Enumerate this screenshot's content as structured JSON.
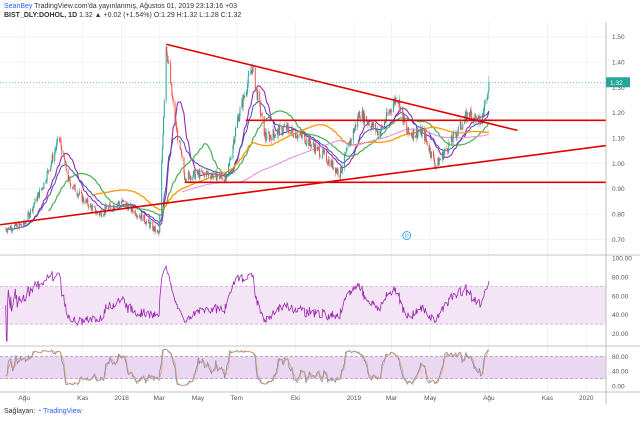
{
  "header": {
    "author": "SeanBey",
    "publish_text": "TradingView.com'da yayınlanmış, Ağustos 01, 2019 23:13:16 +03",
    "symbol": "BIST_DLY:DOHOL, 1D",
    "ohlc": "1.32 ▲ +0.02 (+1.54%) O:1.29 H:1.32 L:1.28 C:1.32"
  },
  "footer": {
    "label": "Sağlayan:",
    "brand": "TradingView"
  },
  "colors": {
    "up": "#26a69a",
    "down": "#ef5350",
    "trend": "#e00000",
    "ma_purple": "#9c27b0",
    "ma_blue": "#3f51b5",
    "ma_green": "#4caf50",
    "ma_orange": "#ff9800",
    "ma_pink": "#e08be0",
    "rsi": "#9c27b0",
    "stoch_k": "#7986cb",
    "stoch_d": "#e0a060"
  },
  "chart_data": [
    {
      "type": "candlestick",
      "panel": "price",
      "x_ticks": [
        "Ağu",
        "Kas",
        "2018",
        "Mar",
        "May",
        "Tem",
        "Eki",
        "2019",
        "Mar",
        "May",
        "Ağu",
        "Kas",
        "2020"
      ],
      "y_ticks": [
        "1.50",
        "1.40",
        "1.30",
        "1.20",
        "1.10",
        "1.00",
        "0.90",
        "0.80",
        "0.70"
      ],
      "ylim": [
        0.65,
        1.55
      ],
      "last_price": "1.32",
      "anchors": [
        {
          "date": "2017-07-01",
          "close": 0.74
        },
        {
          "date": "2017-08-01",
          "close": 0.76
        },
        {
          "date": "2017-09-01",
          "close": 0.92
        },
        {
          "date": "2017-09-25",
          "close": 1.1
        },
        {
          "date": "2017-10-10",
          "close": 0.93
        },
        {
          "date": "2017-11-01",
          "close": 0.86
        },
        {
          "date": "2017-11-25",
          "close": 0.8
        },
        {
          "date": "2018-01-01",
          "close": 0.85
        },
        {
          "date": "2018-02-01",
          "close": 0.79
        },
        {
          "date": "2018-03-01",
          "close": 0.72
        },
        {
          "date": "2018-03-12",
          "close": 1.47
        },
        {
          "date": "2018-03-25",
          "close": 1.18
        },
        {
          "date": "2018-04-10",
          "close": 0.95
        },
        {
          "date": "2018-05-15",
          "close": 0.96
        },
        {
          "date": "2018-06-15",
          "close": 0.94
        },
        {
          "date": "2018-07-01",
          "close": 1.16
        },
        {
          "date": "2018-07-25",
          "close": 1.38
        },
        {
          "date": "2018-08-15",
          "close": 1.1
        },
        {
          "date": "2018-09-15",
          "close": 1.14
        },
        {
          "date": "2018-10-15",
          "close": 1.1
        },
        {
          "date": "2018-11-15",
          "close": 1.03
        },
        {
          "date": "2018-12-10",
          "close": 0.96
        },
        {
          "date": "2019-01-10",
          "close": 1.2
        },
        {
          "date": "2019-02-10",
          "close": 1.12
        },
        {
          "date": "2019-03-10",
          "close": 1.27
        },
        {
          "date": "2019-03-25",
          "close": 1.12
        },
        {
          "date": "2019-04-20",
          "close": 1.12
        },
        {
          "date": "2019-05-10",
          "close": 0.99
        },
        {
          "date": "2019-06-01",
          "close": 1.08
        },
        {
          "date": "2019-07-01",
          "close": 1.2
        },
        {
          "date": "2019-07-20",
          "close": 1.16
        },
        {
          "date": "2019-08-01",
          "close": 1.32
        }
      ],
      "trendlines": [
        {
          "from": [
            "2018-03-12",
            1.47
          ],
          "to": [
            "2019-09-15",
            1.13
          ]
        },
        {
          "from": [
            "2017-06-01",
            0.75
          ],
          "to": [
            "2020-02-01",
            1.07
          ]
        },
        {
          "from": [
            "2018-07-15",
            1.17
          ],
          "to": [
            "2020-02-01",
            1.17
          ]
        },
        {
          "from": [
            "2018-04-10",
            0.925
          ],
          "to": [
            "2020-02-01",
            0.925
          ]
        }
      ],
      "marker": "D"
    },
    {
      "type": "line",
      "panel": "rsi",
      "y_ticks": [
        "100.00",
        "80.00",
        "60.00",
        "40.00",
        "20.00"
      ],
      "ylim": [
        10,
        100
      ],
      "band": [
        30,
        70
      ]
    },
    {
      "type": "line",
      "panel": "stochastic",
      "y_ticks": [
        "80.00",
        "40.00",
        "0.00"
      ],
      "ylim": [
        -8,
        100
      ],
      "band": [
        20,
        80
      ]
    }
  ]
}
